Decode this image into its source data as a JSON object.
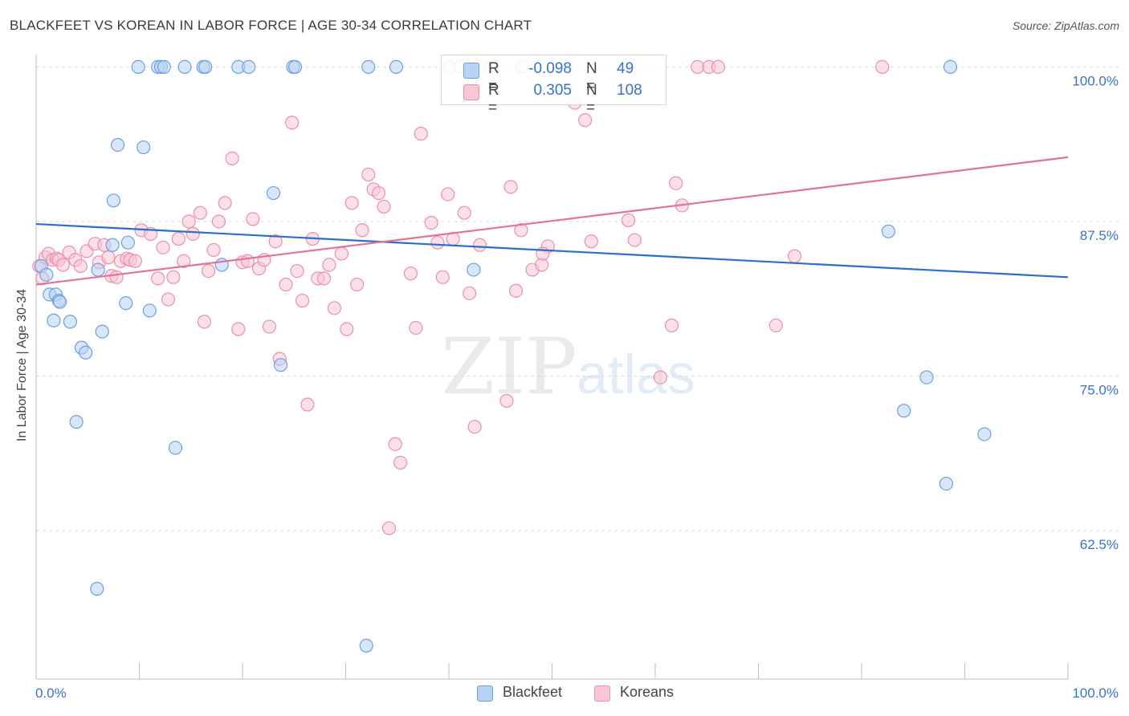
{
  "title": "BLACKFEET VS KOREAN IN LABOR FORCE | AGE 30-34 CORRELATION CHART",
  "source": "Source: ZipAtlas.com",
  "watermark": {
    "zip": "ZIP",
    "atlas": "atlas"
  },
  "colors": {
    "blackfeet_fill": "#b8d3f3",
    "blackfeet_stroke": "#6d9fe0",
    "blackfeet_line": "#2a6fcc",
    "koreans_fill": "#f8c6d6",
    "koreans_stroke": "#ea8fae",
    "koreans_line": "#e3729a",
    "tick_label": "#3a72c8",
    "grid": "#d9d9d9"
  },
  "legend": {
    "rows": [
      {
        "r_label": "R =",
        "r_value": "-0.098",
        "n_label": "N =",
        "n_value": "49"
      },
      {
        "r_label": "R =",
        "r_value": "0.305",
        "n_label": "N =",
        "n_value": "108"
      }
    ]
  },
  "bottom_legend": {
    "blackfeet": "Blackfeet",
    "koreans": "Koreans"
  },
  "chart_data": {
    "type": "scatter",
    "title": "BLACKFEET VS KOREAN IN LABOR FORCE | AGE 30-34 CORRELATION CHART",
    "xlabel": "",
    "ylabel": "In Labor Force | Age 30-34",
    "xlim": [
      0,
      100
    ],
    "ylim": [
      50.5,
      101
    ],
    "x_tick_labels": [
      "0.0%",
      "100.0%"
    ],
    "y_ticks": [
      {
        "value": 100,
        "label": "100.0%"
      },
      {
        "value": 87.5,
        "label": "87.5%"
      },
      {
        "value": 75,
        "label": "75.0%"
      },
      {
        "value": 62.5,
        "label": "62.5%"
      }
    ],
    "grid": true,
    "legend_position": "top-center",
    "series": [
      {
        "name": "Blackfeet",
        "trend": {
          "x": [
            0,
            100
          ],
          "y": [
            87.3,
            83.0
          ]
        },
        "points": [
          [
            0.5,
            83.9
          ],
          [
            1.0,
            83.2
          ],
          [
            1.3,
            81.6
          ],
          [
            1.7,
            79.5
          ],
          [
            1.9,
            81.6
          ],
          [
            2.2,
            81.1
          ],
          [
            2.3,
            81.0
          ],
          [
            3.3,
            79.4
          ],
          [
            3.9,
            71.3
          ],
          [
            4.4,
            77.3
          ],
          [
            4.8,
            76.9
          ],
          [
            5.9,
            57.8
          ],
          [
            6.0,
            83.6
          ],
          [
            6.4,
            78.6
          ],
          [
            7.4,
            85.6
          ],
          [
            7.5,
            89.2
          ],
          [
            7.9,
            93.7
          ],
          [
            8.7,
            80.9
          ],
          [
            8.9,
            85.8
          ],
          [
            9.9,
            100
          ],
          [
            10.4,
            93.5
          ],
          [
            11.0,
            80.3
          ],
          [
            11.8,
            100
          ],
          [
            12.1,
            100
          ],
          [
            12.4,
            100
          ],
          [
            13.5,
            69.2
          ],
          [
            14.4,
            100
          ],
          [
            16.2,
            100
          ],
          [
            16.4,
            100
          ],
          [
            18.0,
            84.0
          ],
          [
            19.6,
            100
          ],
          [
            20.6,
            100
          ],
          [
            23.0,
            89.8
          ],
          [
            23.7,
            75.9
          ],
          [
            24.9,
            100
          ],
          [
            25.1,
            100
          ],
          [
            32.0,
            53.2
          ],
          [
            32.2,
            100
          ],
          [
            34.9,
            100
          ],
          [
            40.1,
            100
          ],
          [
            41.1,
            100
          ],
          [
            42.4,
            83.6
          ],
          [
            47.1,
            100
          ],
          [
            82.6,
            86.7
          ],
          [
            84.1,
            72.2
          ],
          [
            86.3,
            74.9
          ],
          [
            88.2,
            66.3
          ],
          [
            88.6,
            100
          ],
          [
            91.9,
            70.3
          ]
        ]
      },
      {
        "name": "Koreans",
        "trend": {
          "x": [
            0,
            100
          ],
          "y": [
            82.4,
            92.7
          ]
        },
        "points": [
          [
            0.3,
            83.9
          ],
          [
            0.6,
            82.9
          ],
          [
            0.9,
            84.6
          ],
          [
            1.2,
            84.9
          ],
          [
            1.6,
            84.4
          ],
          [
            2.0,
            84.5
          ],
          [
            2.2,
            84.4
          ],
          [
            2.6,
            84.0
          ],
          [
            3.2,
            85.0
          ],
          [
            3.8,
            84.4
          ],
          [
            4.3,
            83.9
          ],
          [
            4.9,
            85.1
          ],
          [
            5.7,
            85.7
          ],
          [
            6.1,
            84.2
          ],
          [
            6.6,
            85.6
          ],
          [
            7.0,
            84.6
          ],
          [
            7.3,
            83.1
          ],
          [
            7.8,
            83.0
          ],
          [
            8.2,
            84.3
          ],
          [
            8.8,
            84.5
          ],
          [
            9.1,
            84.4
          ],
          [
            9.6,
            84.3
          ],
          [
            10.2,
            86.8
          ],
          [
            11.1,
            86.5
          ],
          [
            11.8,
            82.9
          ],
          [
            12.3,
            85.4
          ],
          [
            12.8,
            81.2
          ],
          [
            13.3,
            83.0
          ],
          [
            13.8,
            86.1
          ],
          [
            14.3,
            84.3
          ],
          [
            14.8,
            87.5
          ],
          [
            15.2,
            86.5
          ],
          [
            15.9,
            88.2
          ],
          [
            16.3,
            79.4
          ],
          [
            16.7,
            83.5
          ],
          [
            17.2,
            85.2
          ],
          [
            17.7,
            87.5
          ],
          [
            18.3,
            89.0
          ],
          [
            19.0,
            92.6
          ],
          [
            19.6,
            78.8
          ],
          [
            20.0,
            84.2
          ],
          [
            20.5,
            84.3
          ],
          [
            21.0,
            87.7
          ],
          [
            21.6,
            83.7
          ],
          [
            22.1,
            84.4
          ],
          [
            22.6,
            79.0
          ],
          [
            23.2,
            85.9
          ],
          [
            23.6,
            76.4
          ],
          [
            24.2,
            82.4
          ],
          [
            24.8,
            95.5
          ],
          [
            25.3,
            83.5
          ],
          [
            25.8,
            81.1
          ],
          [
            26.3,
            72.7
          ],
          [
            26.8,
            86.1
          ],
          [
            27.3,
            82.9
          ],
          [
            27.9,
            82.9
          ],
          [
            28.4,
            84.0
          ],
          [
            28.9,
            80.5
          ],
          [
            29.6,
            84.9
          ],
          [
            30.1,
            78.8
          ],
          [
            30.6,
            89.0
          ],
          [
            31.1,
            82.4
          ],
          [
            31.6,
            86.8
          ],
          [
            32.2,
            91.3
          ],
          [
            32.7,
            90.1
          ],
          [
            33.2,
            89.8
          ],
          [
            33.7,
            88.7
          ],
          [
            34.2,
            62.7
          ],
          [
            34.8,
            69.5
          ],
          [
            35.3,
            68.0
          ],
          [
            36.3,
            83.3
          ],
          [
            36.8,
            78.9
          ],
          [
            37.3,
            94.6
          ],
          [
            38.3,
            87.4
          ],
          [
            38.9,
            85.8
          ],
          [
            39.4,
            83.0
          ],
          [
            39.9,
            89.7
          ],
          [
            40.4,
            86.1
          ],
          [
            41.5,
            88.2
          ],
          [
            42.0,
            81.7
          ],
          [
            42.5,
            70.9
          ],
          [
            43.0,
            85.6
          ],
          [
            44.0,
            100
          ],
          [
            45.6,
            73.0
          ],
          [
            46.0,
            90.3
          ],
          [
            46.5,
            81.9
          ],
          [
            47.0,
            86.8
          ],
          [
            48.1,
            83.6
          ],
          [
            49.0,
            84.0
          ],
          [
            49.6,
            85.5
          ],
          [
            49.1,
            84.9
          ],
          [
            50.6,
            98.2
          ],
          [
            52.2,
            97.1
          ],
          [
            53.2,
            95.7
          ],
          [
            53.8,
            85.9
          ],
          [
            56.4,
            98.2
          ],
          [
            57.4,
            87.6
          ],
          [
            58.0,
            86.0
          ],
          [
            60.5,
            74.9
          ],
          [
            61.6,
            79.1
          ],
          [
            62.0,
            90.6
          ],
          [
            62.6,
            88.8
          ],
          [
            64.1,
            100
          ],
          [
            65.2,
            100
          ],
          [
            66.1,
            100
          ],
          [
            71.7,
            79.1
          ],
          [
            73.5,
            84.7
          ],
          [
            82.0,
            100
          ]
        ]
      }
    ]
  }
}
